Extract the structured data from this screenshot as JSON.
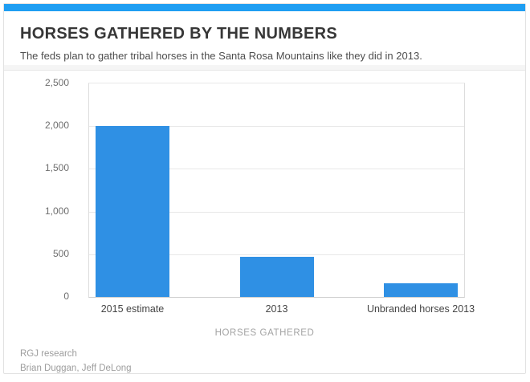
{
  "page": {
    "accent_color": "#1f9ef2",
    "card_border_color": "#e2e2e2"
  },
  "header": {
    "title": "HORSES GATHERED BY THE NUMBERS",
    "subtitle": "The feds plan to gather tribal horses in the Santa Rosa Mountains like they did in 2013."
  },
  "footer": {
    "source": "RGJ research",
    "credits": "Brian Duggan, Jeff DeLong"
  },
  "chart_data": {
    "type": "bar",
    "title": "HORSES GATHERED BY THE NUMBERS",
    "subtitle": "The feds plan to gather tribal horses in the Santa Rosa Mountains like they did in 2013.",
    "xlabel": "HORSES GATHERED",
    "ylabel": "",
    "categories": [
      "2015 estimate",
      "2013",
      "Unbranded horses 2013"
    ],
    "values": [
      2000,
      470,
      160
    ],
    "ylim": [
      0,
      2500
    ],
    "yticks": [
      0,
      500,
      1000,
      1500,
      2000,
      2500
    ],
    "ytick_labels": [
      "0",
      "500",
      "1,000",
      "1,500",
      "2,000",
      "2,500"
    ],
    "bar_color": "#2f90e4",
    "grid": true,
    "legend": false
  }
}
